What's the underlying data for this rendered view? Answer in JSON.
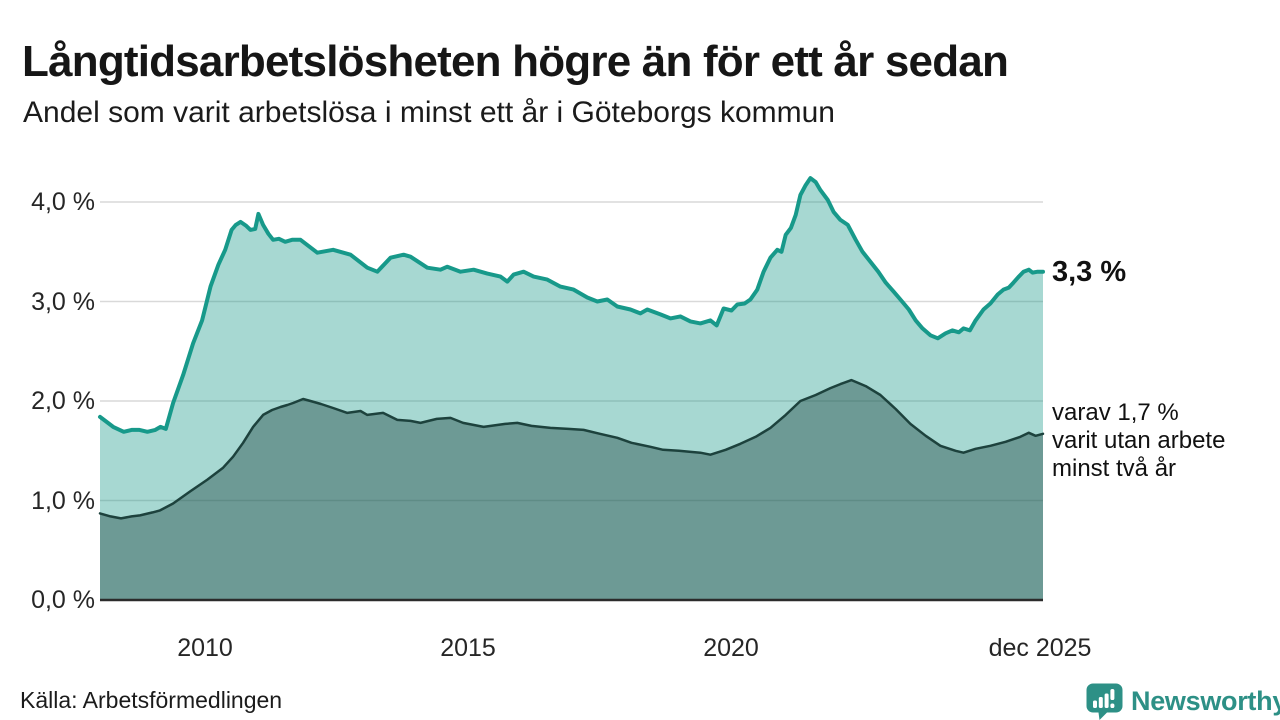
{
  "header": {
    "title": "Långtidsarbetslösheten högre än för ett år sedan",
    "subtitle": "Andel som varit arbetslösa i minst ett år i Göteborgs kommun"
  },
  "annotations": {
    "latest_total": "3,3 %",
    "breakdown": "varav 1,7 %\nvarit utan arbete\nminst två år"
  },
  "footer": {
    "source": "Källa: Arbetsförmedlingen",
    "logo_text": "Newsworthy"
  },
  "brand": {
    "teal": "#2d9086"
  },
  "chart_data": {
    "type": "area",
    "title": "Långtidsarbetslösheten högre än för ett år sedan",
    "subtitle": "Andel som varit arbetslösa i minst ett år i Göteborgs kommun",
    "unit": "%",
    "grid": "horizontal",
    "x_domain": [
      2008.0,
      2025.92
    ],
    "ylim": [
      0,
      4.3
    ],
    "y_ticks": [
      {
        "label": "4,0 %",
        "value": 4
      },
      {
        "label": "3,0 %",
        "value": 3
      },
      {
        "label": "2,0 %",
        "value": 2
      },
      {
        "label": "1,0 %",
        "value": 1
      },
      {
        "label": "0,0 %",
        "value": 0
      }
    ],
    "x_ticks": [
      {
        "label": "2010",
        "year": 2010
      },
      {
        "label": "2015",
        "year": 2015
      },
      {
        "label": "2020",
        "year": 2020
      },
      {
        "label": "dec 2025",
        "year": 2025.92
      }
    ],
    "latest_values": {
      "total": 3.3,
      "two_years": 1.7
    },
    "series": [
      {
        "name": "Andel arbetslösa minst ett år",
        "color": "#17998a",
        "fill": "rgba(23,153,138,0.38)",
        "stroke_width": 4,
        "points": [
          [
            2008.0,
            1.84
          ],
          [
            2008.1,
            1.8
          ],
          [
            2008.25,
            1.74
          ],
          [
            2008.45,
            1.69
          ],
          [
            2008.6,
            1.71
          ],
          [
            2008.75,
            1.71
          ],
          [
            2008.9,
            1.69
          ],
          [
            2009.05,
            1.71
          ],
          [
            2009.15,
            1.74
          ],
          [
            2009.25,
            1.72
          ],
          [
            2009.39,
            1.98
          ],
          [
            2009.58,
            2.26
          ],
          [
            2009.77,
            2.58
          ],
          [
            2009.94,
            2.81
          ],
          [
            2010.1,
            3.15
          ],
          [
            2010.25,
            3.37
          ],
          [
            2010.38,
            3.52
          ],
          [
            2010.5,
            3.72
          ],
          [
            2010.58,
            3.77
          ],
          [
            2010.67,
            3.8
          ],
          [
            2010.78,
            3.76
          ],
          [
            2010.86,
            3.72
          ],
          [
            2010.95,
            3.73
          ],
          [
            2011.01,
            3.88
          ],
          [
            2011.1,
            3.77
          ],
          [
            2011.2,
            3.68
          ],
          [
            2011.29,
            3.62
          ],
          [
            2011.4,
            3.63
          ],
          [
            2011.52,
            3.6
          ],
          [
            2011.65,
            3.62
          ],
          [
            2011.81,
            3.62
          ],
          [
            2012.13,
            3.49
          ],
          [
            2012.43,
            3.52
          ],
          [
            2012.76,
            3.47
          ],
          [
            2013.08,
            3.34
          ],
          [
            2013.27,
            3.3
          ],
          [
            2013.52,
            3.44
          ],
          [
            2013.77,
            3.47
          ],
          [
            2013.9,
            3.45
          ],
          [
            2014.22,
            3.34
          ],
          [
            2014.47,
            3.32
          ],
          [
            2014.6,
            3.35
          ],
          [
            2014.85,
            3.3
          ],
          [
            2015.1,
            3.32
          ],
          [
            2015.36,
            3.28
          ],
          [
            2015.61,
            3.25
          ],
          [
            2015.74,
            3.2
          ],
          [
            2015.86,
            3.27
          ],
          [
            2016.05,
            3.3
          ],
          [
            2016.24,
            3.25
          ],
          [
            2016.5,
            3.22
          ],
          [
            2016.75,
            3.15
          ],
          [
            2017.0,
            3.12
          ],
          [
            2017.26,
            3.04
          ],
          [
            2017.45,
            3.0
          ],
          [
            2017.64,
            3.02
          ],
          [
            2017.83,
            2.95
          ],
          [
            2018.08,
            2.92
          ],
          [
            2018.27,
            2.88
          ],
          [
            2018.4,
            2.92
          ],
          [
            2018.65,
            2.87
          ],
          [
            2018.84,
            2.83
          ],
          [
            2019.03,
            2.85
          ],
          [
            2019.22,
            2.8
          ],
          [
            2019.41,
            2.78
          ],
          [
            2019.6,
            2.81
          ],
          [
            2019.72,
            2.76
          ],
          [
            2019.85,
            2.93
          ],
          [
            2020.0,
            2.91
          ],
          [
            2020.11,
            2.97
          ],
          [
            2020.25,
            2.98
          ],
          [
            2020.36,
            3.02
          ],
          [
            2020.49,
            3.12
          ],
          [
            2020.61,
            3.3
          ],
          [
            2020.74,
            3.44
          ],
          [
            2020.87,
            3.52
          ],
          [
            2020.95,
            3.5
          ],
          [
            2021.03,
            3.67
          ],
          [
            2021.13,
            3.74
          ],
          [
            2021.22,
            3.87
          ],
          [
            2021.31,
            4.07
          ],
          [
            2021.41,
            4.17
          ],
          [
            2021.5,
            4.24
          ],
          [
            2021.6,
            4.2
          ],
          [
            2021.69,
            4.12
          ],
          [
            2021.83,
            4.02
          ],
          [
            2021.94,
            3.9
          ],
          [
            2022.07,
            3.82
          ],
          [
            2022.21,
            3.77
          ],
          [
            2022.36,
            3.62
          ],
          [
            2022.49,
            3.5
          ],
          [
            2022.64,
            3.4
          ],
          [
            2022.79,
            3.3
          ],
          [
            2022.93,
            3.19
          ],
          [
            2023.08,
            3.1
          ],
          [
            2023.21,
            3.02
          ],
          [
            2023.37,
            2.92
          ],
          [
            2023.5,
            2.81
          ],
          [
            2023.63,
            2.73
          ],
          [
            2023.78,
            2.66
          ],
          [
            2023.92,
            2.63
          ],
          [
            2024.07,
            2.68
          ],
          [
            2024.2,
            2.71
          ],
          [
            2024.32,
            2.69
          ],
          [
            2024.41,
            2.73
          ],
          [
            2024.53,
            2.71
          ],
          [
            2024.64,
            2.81
          ],
          [
            2024.79,
            2.92
          ],
          [
            2024.92,
            2.98
          ],
          [
            2025.06,
            3.07
          ],
          [
            2025.17,
            3.12
          ],
          [
            2025.27,
            3.14
          ],
          [
            2025.36,
            3.19
          ],
          [
            2025.46,
            3.25
          ],
          [
            2025.55,
            3.3
          ],
          [
            2025.65,
            3.32
          ],
          [
            2025.72,
            3.29
          ],
          [
            2025.82,
            3.3
          ],
          [
            2025.92,
            3.3
          ]
        ]
      },
      {
        "name": "varav utan arbete minst två år",
        "color": "#1d423d",
        "fill": "rgba(23,62,58,0.40)",
        "stroke_width": 2.5,
        "points": [
          [
            2008.0,
            0.87
          ],
          [
            2008.2,
            0.84
          ],
          [
            2008.4,
            0.82
          ],
          [
            2008.6,
            0.84
          ],
          [
            2008.76,
            0.85
          ],
          [
            2009.0,
            0.88
          ],
          [
            2009.14,
            0.9
          ],
          [
            2009.39,
            0.97
          ],
          [
            2009.71,
            1.09
          ],
          [
            2010.04,
            1.21
          ],
          [
            2010.34,
            1.33
          ],
          [
            2010.53,
            1.44
          ],
          [
            2010.72,
            1.58
          ],
          [
            2010.91,
            1.74
          ],
          [
            2011.1,
            1.86
          ],
          [
            2011.27,
            1.91
          ],
          [
            2011.43,
            1.94
          ],
          [
            2011.56,
            1.96
          ],
          [
            2011.67,
            1.98
          ],
          [
            2011.86,
            2.02
          ],
          [
            2012.0,
            2.0
          ],
          [
            2012.2,
            1.97
          ],
          [
            2012.43,
            1.93
          ],
          [
            2012.7,
            1.88
          ],
          [
            2012.95,
            1.9
          ],
          [
            2013.08,
            1.86
          ],
          [
            2013.38,
            1.88
          ],
          [
            2013.65,
            1.81
          ],
          [
            2013.9,
            1.8
          ],
          [
            2014.09,
            1.78
          ],
          [
            2014.4,
            1.82
          ],
          [
            2014.66,
            1.83
          ],
          [
            2014.9,
            1.78
          ],
          [
            2015.29,
            1.74
          ],
          [
            2015.7,
            1.77
          ],
          [
            2015.93,
            1.78
          ],
          [
            2016.2,
            1.75
          ],
          [
            2016.56,
            1.73
          ],
          [
            2016.9,
            1.72
          ],
          [
            2017.19,
            1.71
          ],
          [
            2017.5,
            1.67
          ],
          [
            2017.83,
            1.63
          ],
          [
            2018.1,
            1.58
          ],
          [
            2018.46,
            1.54
          ],
          [
            2018.7,
            1.51
          ],
          [
            2019.0,
            1.5
          ],
          [
            2019.2,
            1.49
          ],
          [
            2019.41,
            1.48
          ],
          [
            2019.6,
            1.46
          ],
          [
            2019.89,
            1.51
          ],
          [
            2020.17,
            1.57
          ],
          [
            2020.46,
            1.64
          ],
          [
            2020.74,
            1.73
          ],
          [
            2021.03,
            1.86
          ],
          [
            2021.31,
            2.0
          ],
          [
            2021.6,
            2.06
          ],
          [
            2021.88,
            2.13
          ],
          [
            2022.07,
            2.17
          ],
          [
            2022.28,
            2.21
          ],
          [
            2022.55,
            2.15
          ],
          [
            2022.83,
            2.06
          ],
          [
            2023.12,
            1.92
          ],
          [
            2023.4,
            1.77
          ],
          [
            2023.69,
            1.65
          ],
          [
            2023.97,
            1.55
          ],
          [
            2024.26,
            1.5
          ],
          [
            2024.41,
            1.48
          ],
          [
            2024.64,
            1.52
          ],
          [
            2024.92,
            1.55
          ],
          [
            2025.21,
            1.59
          ],
          [
            2025.49,
            1.64
          ],
          [
            2025.65,
            1.68
          ],
          [
            2025.78,
            1.65
          ],
          [
            2025.92,
            1.67
          ]
        ]
      }
    ]
  }
}
